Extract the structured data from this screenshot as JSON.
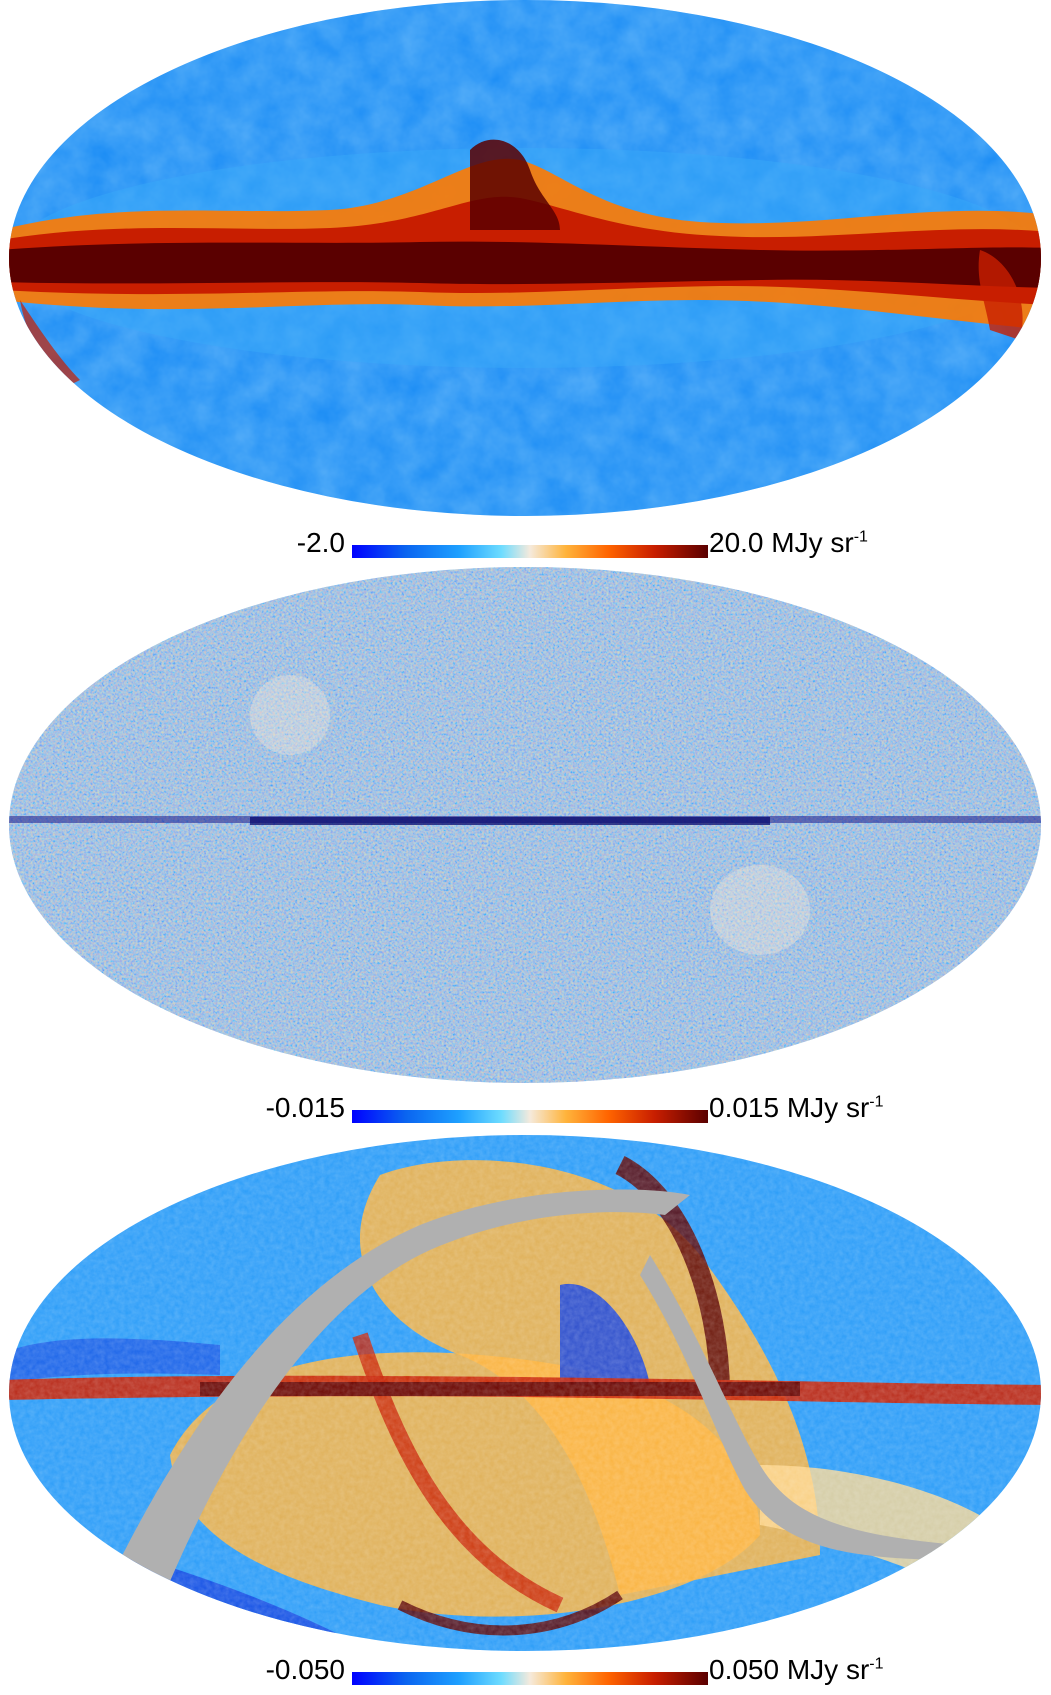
{
  "panels": [
    {
      "colorbar": {
        "min": "-2.0",
        "max": "20.0",
        "unit": "MJy sr",
        "unit_exp": "-1"
      }
    },
    {
      "colorbar": {
        "min": "-0.015",
        "max": "0.015",
        "unit": "MJy sr",
        "unit_exp": "-1"
      }
    },
    {
      "colorbar": {
        "min": "-0.050",
        "max": "0.050",
        "unit": "MJy sr",
        "unit_exp": "-1"
      }
    }
  ],
  "colors": {
    "colormap": [
      "#0000ff",
      "#0a64f0",
      "#1ea0ff",
      "#6edcff",
      "#f5eadc",
      "#ffb43c",
      "#ff6400",
      "#c81e00",
      "#5a0000"
    ],
    "masked": "#b0b0b0"
  }
}
